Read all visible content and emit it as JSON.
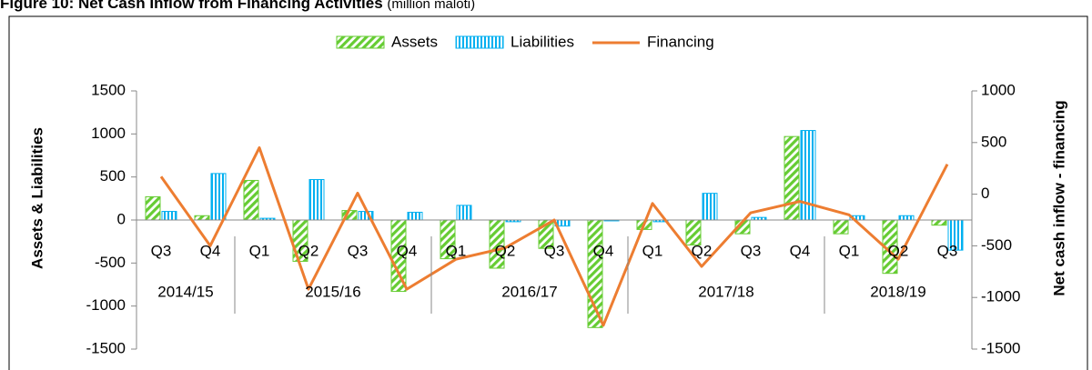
{
  "chart_data": {
    "type": "bar",
    "title": "Figure 10: Net Cash Inflow from Financing Activities",
    "subtitle": "(million maloti)",
    "ylabel": "Assets & Liabilities",
    "y2label": "Net cash inflow - financing",
    "categories": [
      "Q3",
      "Q4",
      "Q1",
      "Q2",
      "Q3",
      "Q4",
      "Q1",
      "Q2",
      "Q3",
      "Q4",
      "Q1",
      "Q2",
      "Q3",
      "Q4",
      "Q1",
      "Q2",
      "Q3"
    ],
    "year_groups": [
      {
        "name": "2014/15",
        "categories": 2
      },
      {
        "name": "2015/16",
        "categories": 4
      },
      {
        "name": "2016/17",
        "categories": 4
      },
      {
        "name": "2017/18",
        "categories": 4
      },
      {
        "name": "2018/19",
        "categories": 3
      }
    ],
    "series": [
      {
        "name": "Assets",
        "type": "bar",
        "color": "#66cc33",
        "values": [
          270,
          50,
          460,
          -480,
          110,
          -830,
          -450,
          -560,
          -330,
          -1250,
          -110,
          -290,
          -160,
          970,
          -160,
          -620,
          -60
        ]
      },
      {
        "name": "Liabilities",
        "type": "bar",
        "color": "#00b0f0",
        "values": [
          100,
          540,
          20,
          470,
          100,
          90,
          170,
          -20,
          -70,
          -10,
          -20,
          310,
          30,
          1040,
          50,
          50,
          -350
        ]
      },
      {
        "name": "Financing",
        "type": "line",
        "axis": "y2",
        "color": "#ed7d31",
        "values": [
          170,
          -500,
          450,
          -920,
          10,
          -920,
          -630,
          -520,
          -250,
          -1270,
          -90,
          -700,
          -180,
          -70,
          -200,
          -630,
          290
        ]
      }
    ],
    "ylim": [
      -1500,
      1500
    ],
    "yticks": [
      -1500,
      -1000,
      -500,
      0,
      500,
      1000,
      1500
    ],
    "y2lim": [
      -1500,
      1000
    ],
    "y2ticks": [
      -1500,
      -1000,
      -500,
      0,
      500,
      1000
    ],
    "legend": "top"
  }
}
